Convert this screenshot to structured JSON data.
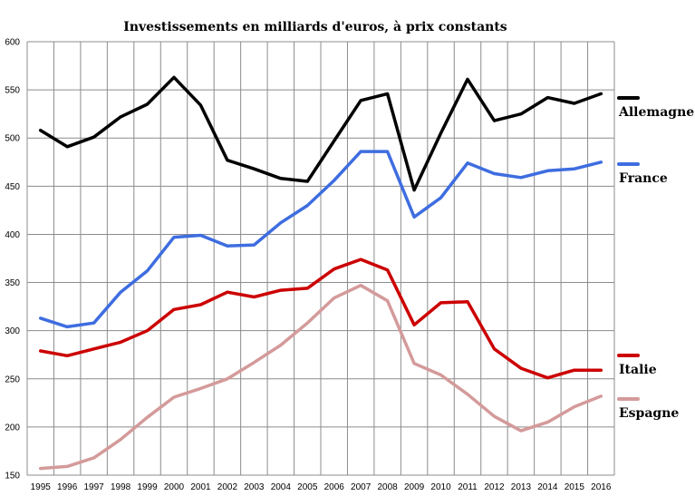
{
  "chart_data": {
    "type": "line",
    "title": "Investissements en milliards d'euros, à prix constants",
    "xlabel": "",
    "ylabel": "",
    "ylim": [
      150,
      600
    ],
    "yticks": [
      150,
      200,
      250,
      300,
      350,
      400,
      450,
      500,
      550,
      600
    ],
    "grid": true,
    "legend": "right",
    "categories": [
      "1995",
      "1996",
      "1997",
      "1998",
      "1999",
      "2000",
      "2001",
      "2002",
      "2003",
      "2004",
      "2005",
      "2006",
      "2007",
      "2008",
      "2009",
      "2010",
      "2011",
      "2012",
      "2013",
      "2014",
      "2015",
      "2016"
    ],
    "series": [
      {
        "name": "Allemagne",
        "color": "#000000",
        "values": [
          508,
          491,
          501,
          522,
          535,
          563,
          534,
          477,
          468,
          458,
          455,
          497,
          539,
          546,
          446,
          505,
          561,
          518,
          525,
          542,
          536,
          546
        ]
      },
      {
        "name": "France",
        "color": "#3e6de0",
        "values": [
          313,
          304,
          308,
          340,
          362,
          397,
          399,
          388,
          389,
          412,
          430,
          456,
          486,
          486,
          418,
          438,
          474,
          463,
          459,
          466,
          468,
          475
        ]
      },
      {
        "name": "Italie",
        "color": "#cc0000",
        "values": [
          279,
          274,
          281,
          288,
          300,
          322,
          327,
          340,
          335,
          342,
          344,
          364,
          374,
          363,
          306,
          329,
          330,
          281,
          261,
          251,
          259,
          259
        ]
      },
      {
        "name": "Espagne",
        "color": "#d49a9a",
        "values": [
          157,
          159,
          168,
          187,
          210,
          231,
          240,
          250,
          267,
          285,
          308,
          334,
          347,
          331,
          266,
          254,
          234,
          211,
          196,
          205,
          221,
          232
        ]
      }
    ]
  }
}
